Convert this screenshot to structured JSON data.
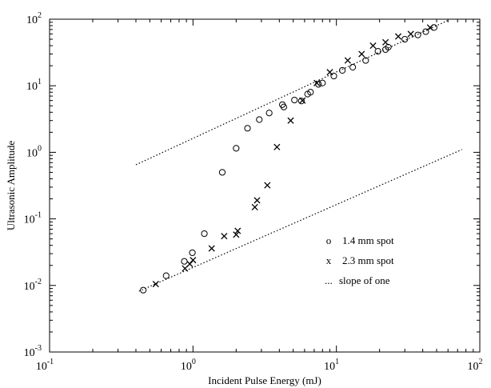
{
  "chart_data": {
    "type": "scatter",
    "title": "",
    "xlabel": "Incident Pulse Energy (mJ)",
    "ylabel": "Ultrasonic Amplitude",
    "xscale": "log",
    "yscale": "log",
    "xlim": [
      0.1,
      100
    ],
    "ylim": [
      0.001,
      100
    ],
    "grid": false,
    "legend_placement": "lower-right",
    "x_ticks": [
      {
        "base": "10",
        "exp": "-1",
        "value": 0.1
      },
      {
        "base": "10",
        "exp": "0",
        "value": 1
      },
      {
        "base": "10",
        "exp": "1",
        "value": 10
      },
      {
        "base": "10",
        "exp": "2",
        "value": 100
      }
    ],
    "y_ticks": [
      {
        "base": "10",
        "exp": "-3",
        "value": 0.001
      },
      {
        "base": "10",
        "exp": "-2",
        "value": 0.01
      },
      {
        "base": "10",
        "exp": "-1",
        "value": 0.1
      },
      {
        "base": "10",
        "exp": "0",
        "value": 1
      },
      {
        "base": "10",
        "exp": "1",
        "value": 10
      },
      {
        "base": "10",
        "exp": "2",
        "value": 100
      }
    ],
    "series": [
      {
        "name": "1.4 mm spot",
        "marker": "o",
        "points": [
          [
            0.45,
            0.0085
          ],
          [
            0.65,
            0.014
          ],
          [
            0.87,
            0.023
          ],
          [
            0.99,
            0.031
          ],
          [
            1.2,
            0.06
          ],
          [
            1.6,
            0.5
          ],
          [
            2.0,
            1.15
          ],
          [
            2.4,
            2.3
          ],
          [
            2.9,
            3.1
          ],
          [
            3.4,
            3.9
          ],
          [
            4.2,
            5.2
          ],
          [
            4.3,
            4.8
          ],
          [
            5.1,
            6.1
          ],
          [
            5.7,
            5.9
          ],
          [
            6.3,
            7.5
          ],
          [
            6.6,
            8.0
          ],
          [
            7.5,
            10.5
          ],
          [
            8.0,
            11.0
          ],
          [
            9.6,
            14.0
          ],
          [
            11.0,
            17.0
          ],
          [
            13.0,
            19.0
          ],
          [
            16.0,
            24.0
          ],
          [
            19.5,
            33.0
          ],
          [
            22.0,
            35.0
          ],
          [
            23.0,
            38.0
          ],
          [
            30.0,
            50.0
          ],
          [
            37.0,
            58.0
          ],
          [
            42.0,
            65.0
          ],
          [
            48.0,
            75.0
          ]
        ]
      },
      {
        "name": "2.3 mm spot",
        "marker": "x",
        "points": [
          [
            0.55,
            0.0105
          ],
          [
            0.88,
            0.018
          ],
          [
            0.95,
            0.021
          ],
          [
            1.0,
            0.024
          ],
          [
            1.35,
            0.036
          ],
          [
            1.65,
            0.055
          ],
          [
            2.0,
            0.058
          ],
          [
            2.05,
            0.066
          ],
          [
            2.7,
            0.15
          ],
          [
            2.8,
            0.19
          ],
          [
            3.3,
            0.32
          ],
          [
            3.85,
            1.2
          ],
          [
            4.8,
            3.0
          ],
          [
            5.8,
            6.0
          ],
          [
            7.3,
            11.0
          ],
          [
            9.0,
            16.0
          ],
          [
            12.0,
            24.0
          ],
          [
            15.0,
            30.0
          ],
          [
            18.0,
            40.0
          ],
          [
            22.0,
            45.0
          ],
          [
            27.0,
            55.0
          ],
          [
            33.0,
            60.0
          ],
          [
            45.0,
            75.0
          ]
        ]
      },
      {
        "name": "slope of one",
        "marker": "dotted-line",
        "lines": [
          [
            [
              0.42,
              0.0082
            ],
            [
              75.0,
              1.1
            ]
          ],
          [
            [
              0.4,
              0.65
            ],
            [
              60.0,
              96.0
            ]
          ]
        ]
      }
    ],
    "legend": [
      {
        "symbol": "o",
        "label": "1.4 mm spot"
      },
      {
        "symbol": "x",
        "label": "2.3 mm spot"
      },
      {
        "symbol": "...",
        "label": "slope of one"
      }
    ]
  }
}
